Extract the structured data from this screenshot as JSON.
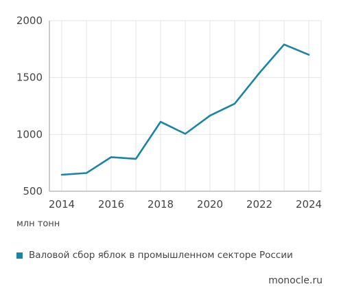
{
  "chart_data": {
    "type": "line",
    "title": "",
    "xlabel": "",
    "ylabel": "млн тонн",
    "x": [
      2014,
      2015,
      2016,
      2017,
      2018,
      2019,
      2020,
      2021,
      2022,
      2023,
      2024
    ],
    "series": [
      {
        "name": "Валовой сбор яблок в промышленном секторе России",
        "color": "#1a85a3",
        "values": [
          645,
          660,
          800,
          785,
          1110,
          1005,
          1165,
          1270,
          1540,
          1790,
          1700
        ]
      }
    ],
    "xlim": [
      2013.5,
      2024.5
    ],
    "ylim": [
      500,
      2000
    ],
    "yticks": [
      500,
      1000,
      1500,
      2000
    ],
    "xticks": [
      2014,
      2016,
      2018,
      2020,
      2022,
      2024
    ],
    "grid": true,
    "legend_position": "bottom-left"
  },
  "source": "monocle.ru"
}
